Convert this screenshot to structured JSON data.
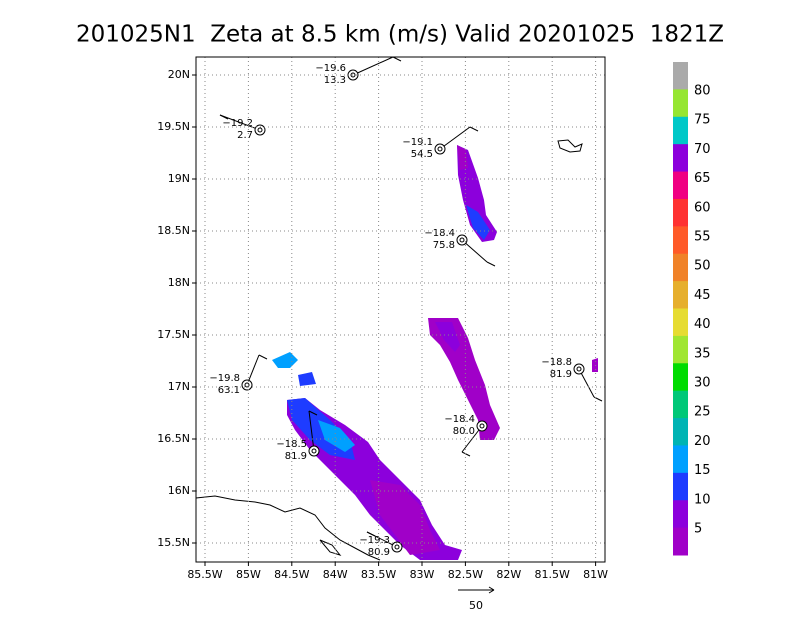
{
  "title": "201025N1  Zeta at 8.5 km (m/s) Valid 20201025  1821Z",
  "x_axis": {
    "labels": [
      "85.5W",
      "85W",
      "84.5W",
      "84W",
      "83.5W",
      "83W",
      "82.5W",
      "82W",
      "81.5W",
      "81W"
    ]
  },
  "y_axis": {
    "labels": [
      "15.5N",
      "16N",
      "16.5N",
      "17N",
      "17.5N",
      "18N",
      "18.5N",
      "19N",
      "19.5N",
      "20N"
    ]
  },
  "colorbar": {
    "labels": [
      80,
      75,
      70,
      65,
      60,
      55,
      50,
      45,
      40,
      35,
      30,
      25,
      20,
      15,
      10,
      5
    ]
  },
  "stations": [
    {
      "top": "−19.6",
      "bottom": "13.3"
    },
    {
      "top": "−19.2",
      "bottom": "2.7"
    },
    {
      "top": "−19.1",
      "bottom": "54.5"
    },
    {
      "top": "−18.4",
      "bottom": "75.8"
    },
    {
      "top": "−19.8",
      "bottom": "63.1"
    },
    {
      "top": "−18.8",
      "bottom": "81.9"
    },
    {
      "top": "−18.5",
      "bottom": "81.9"
    },
    {
      "top": "−18.4",
      "bottom": "80.0"
    },
    {
      "top": "−19.3",
      "bottom": "80.9"
    }
  ],
  "reference_vector": {
    "label": "50"
  }
}
